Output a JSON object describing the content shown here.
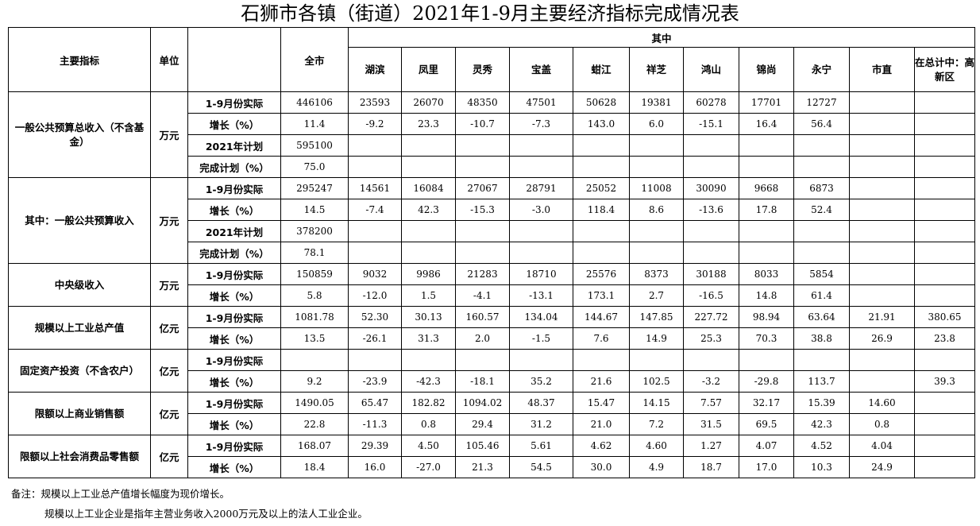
{
  "title": "石狮市各镇（街道）2021年1-9月主要经济指标完成情况表",
  "header": {
    "indicator": "主要指标",
    "unit": "单位",
    "city": "全市",
    "group": "其中",
    "towns": [
      "湖滨",
      "凤里",
      "灵秀",
      "宝盖",
      "蚶江",
      "祥芝",
      "鸿山",
      "锦尚",
      "永宁",
      "市直",
      "在总计中：高新区"
    ]
  },
  "sections": [
    {
      "name": "一般公共预算总收入（不含基金）",
      "unit": "万元",
      "rows": [
        {
          "label": "1-9月份实际",
          "city": "446106",
          "values": [
            "23593",
            "26070",
            "48350",
            "47501",
            "50628",
            "19381",
            "60278",
            "17701",
            "12727",
            "",
            ""
          ]
        },
        {
          "label": "增长（%）",
          "city": "11.4",
          "values": [
            "-9.2",
            "23.3",
            "-10.7",
            "-7.3",
            "143.0",
            "6.0",
            "-15.1",
            "16.4",
            "56.4",
            "",
            ""
          ]
        },
        {
          "label": "2021年计划",
          "city": "595100",
          "values": [
            "",
            "",
            "",
            "",
            "",
            "",
            "",
            "",
            "",
            "",
            ""
          ]
        },
        {
          "label": "完成计划（%）",
          "city": "75.0",
          "values": [
            "",
            "",
            "",
            "",
            "",
            "",
            "",
            "",
            "",
            "",
            ""
          ]
        }
      ]
    },
    {
      "name": "其中：一般公共预算收入",
      "unit": "万元",
      "rows": [
        {
          "label": "1-9月份实际",
          "city": "295247",
          "values": [
            "14561",
            "16084",
            "27067",
            "28791",
            "25052",
            "11008",
            "30090",
            "9668",
            "6873",
            "",
            ""
          ]
        },
        {
          "label": "增长（%）",
          "city": "14.5",
          "values": [
            "-7.4",
            "42.3",
            "-15.3",
            "-3.0",
            "118.4",
            "8.6",
            "-13.6",
            "17.8",
            "52.4",
            "",
            ""
          ]
        },
        {
          "label": "2021年计划",
          "city": "378200",
          "values": [
            "",
            "",
            "",
            "",
            "",
            "",
            "",
            "",
            "",
            "",
            ""
          ]
        },
        {
          "label": "完成计划（%）",
          "city": "78.1",
          "values": [
            "",
            "",
            "",
            "",
            "",
            "",
            "",
            "",
            "",
            "",
            ""
          ]
        }
      ]
    },
    {
      "name": "中央级收入",
      "unit": "万元",
      "rows": [
        {
          "label": "1-9月份实际",
          "city": "150859",
          "values": [
            "9032",
            "9986",
            "21283",
            "18710",
            "25576",
            "8373",
            "30188",
            "8033",
            "5854",
            "",
            ""
          ]
        },
        {
          "label": "增长（%）",
          "city": "5.8",
          "values": [
            "-12.0",
            "1.5",
            "-4.1",
            "-13.1",
            "173.1",
            "2.7",
            "-16.5",
            "14.8",
            "61.4",
            "",
            ""
          ]
        }
      ]
    },
    {
      "name": "规模以上工业总产值",
      "unit": "亿元",
      "rows": [
        {
          "label": "1-9月份实际",
          "city": "1081.78",
          "values": [
            "52.30",
            "30.13",
            "160.57",
            "134.04",
            "144.67",
            "147.85",
            "227.72",
            "98.94",
            "63.64",
            "21.91",
            "380.65"
          ]
        },
        {
          "label": "增长（%）",
          "city": "13.5",
          "values": [
            "-26.1",
            "31.3",
            "2.0",
            "-1.5",
            "7.6",
            "14.9",
            "25.3",
            "70.3",
            "38.8",
            "26.9",
            "23.8"
          ]
        }
      ]
    },
    {
      "name": "固定资产投资（不含农户）",
      "unit": "亿元",
      "rows": [
        {
          "label": "1-9月份实际",
          "city": "",
          "values": [
            "",
            "",
            "",
            "",
            "",
            "",
            "",
            "",
            "",
            "",
            ""
          ]
        },
        {
          "label": "增长（%）",
          "city": "9.2",
          "values": [
            "-23.9",
            "-42.3",
            "-18.1",
            "35.2",
            "21.6",
            "102.5",
            "-3.2",
            "-29.8",
            "113.7",
            "",
            "39.3"
          ]
        }
      ]
    },
    {
      "name": "限额以上商业销售额",
      "unit": "亿元",
      "rows": [
        {
          "label": "1-9月份实际",
          "city": "1490.05",
          "values": [
            "65.47",
            "182.82",
            "1094.02",
            "48.37",
            "15.47",
            "14.15",
            "7.57",
            "32.17",
            "15.39",
            "14.60",
            ""
          ]
        },
        {
          "label": "增长（%）",
          "city": "22.8",
          "values": [
            "-11.3",
            "0.8",
            "29.4",
            "31.2",
            "21.0",
            "7.2",
            "31.5",
            "69.5",
            "42.3",
            "0.8",
            ""
          ]
        }
      ]
    },
    {
      "name": "限额以上社会消费品零售额",
      "unit": "亿元",
      "rows": [
        {
          "label": "1-9月份实际",
          "city": "168.07",
          "values": [
            "29.39",
            "4.50",
            "105.46",
            "5.61",
            "4.62",
            "4.60",
            "1.27",
            "4.07",
            "4.52",
            "4.04",
            ""
          ]
        },
        {
          "label": "增长（%）",
          "city": "18.4",
          "values": [
            "16.0",
            "-27.0",
            "21.3",
            "54.5",
            "30.0",
            "4.9",
            "18.7",
            "17.0",
            "10.3",
            "24.9",
            ""
          ]
        }
      ]
    }
  ],
  "notes": [
    "备注：规模以上工业总产值增长幅度为现价增长。",
    "规模以上工业企业是指年主营业务收入2000万元及以上的法人工业企业。"
  ]
}
